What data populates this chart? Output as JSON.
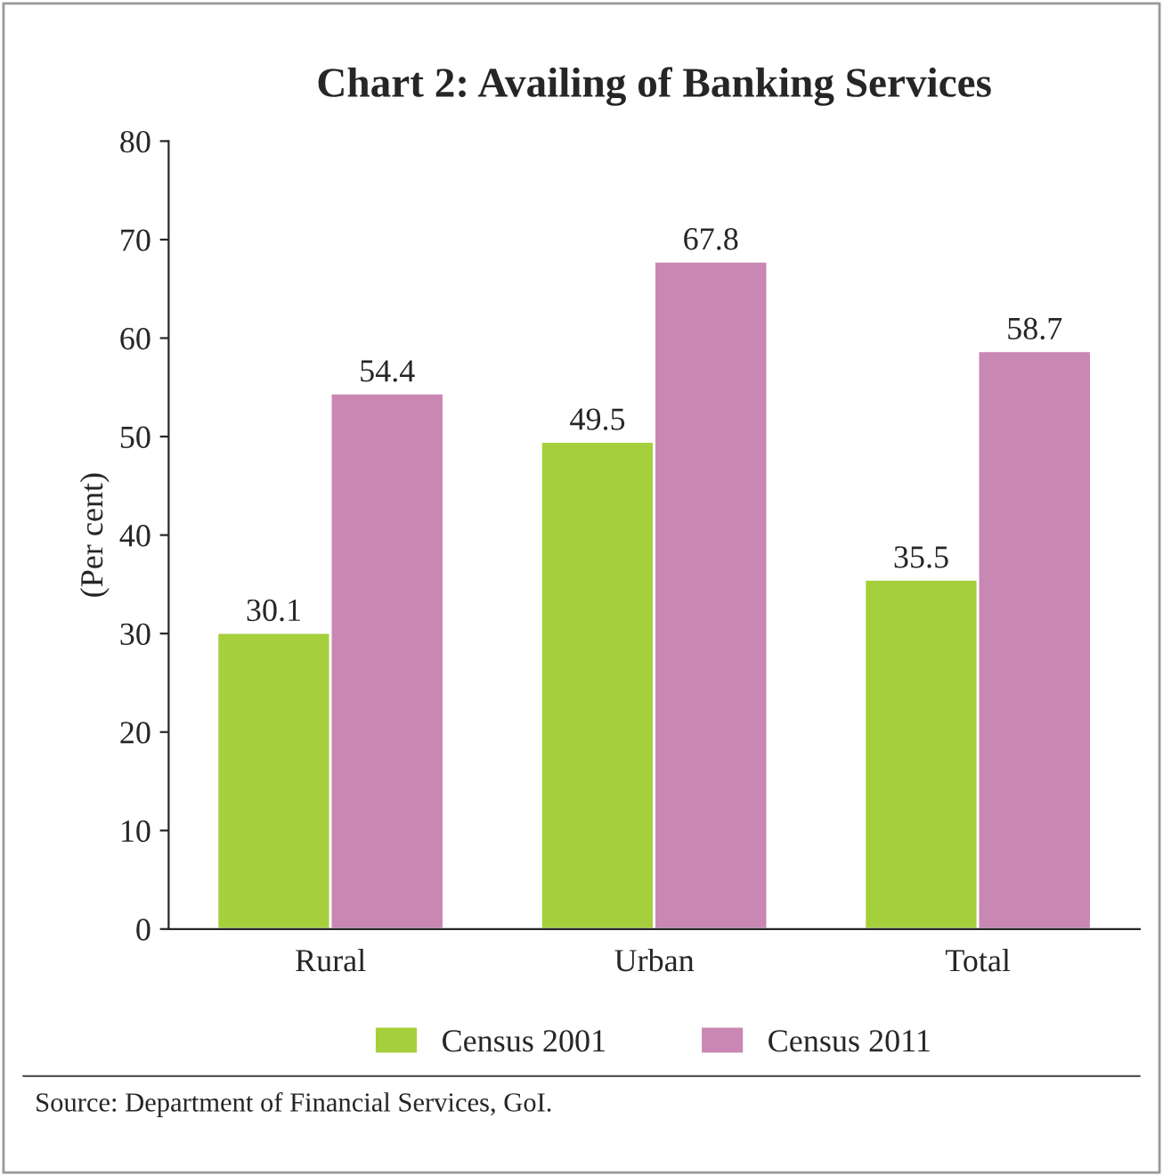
{
  "chart_data": {
    "type": "bar",
    "title": "Chart 2: Availing of Banking Services",
    "ylabel": "(Per cent)",
    "categories": [
      "Rural",
      "Urban",
      "Total"
    ],
    "series": [
      {
        "name": "Census 2001",
        "color": "#a5cf3b",
        "values": [
          30.1,
          49.5,
          35.5
        ]
      },
      {
        "name": "Census 2011",
        "color": "#c987b3",
        "values": [
          54.4,
          67.8,
          58.7
        ]
      }
    ],
    "ylim": [
      0,
      80
    ],
    "yticks": [
      0,
      10,
      20,
      30,
      40,
      50,
      60,
      70,
      80
    ],
    "data_labels": true,
    "grid": false,
    "legend": "bottom",
    "annotations": [
      "Source: Department of Financial Services, GoI."
    ]
  }
}
